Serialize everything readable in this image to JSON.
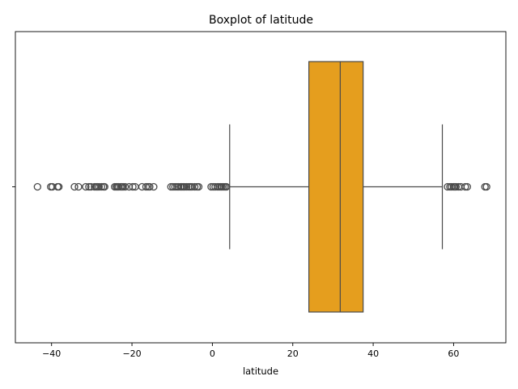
{
  "chart_data": {
    "type": "boxplot",
    "title": "Boxplot of latitude",
    "xlabel": "latitude",
    "ylabel": "",
    "xlim": [
      -49.0,
      73.0
    ],
    "x_ticks": [
      -40,
      -20,
      0,
      20,
      40,
      60
    ],
    "x_tick_labels": [
      "−40",
      "−20",
      "0",
      "20",
      "40",
      "60"
    ],
    "y_tick_labels": [
      ""
    ],
    "box": {
      "q1": 24.0,
      "median": 31.8,
      "q3": 37.5,
      "whisker_low": 4.3,
      "whisker_high": 57.2
    },
    "outliers": [
      -43.5,
      -40.2,
      -39.8,
      -38.5,
      -38.2,
      -34.3,
      -33.3,
      -31.5,
      -30.7,
      -30.2,
      -29.3,
      -28.9,
      -28.6,
      -28.2,
      -27.6,
      -27.1,
      -26.8,
      -24.3,
      -23.9,
      -23.6,
      -23.3,
      -22.8,
      -22.5,
      -22.2,
      -21.7,
      -20.7,
      -19.8,
      -19.2,
      -17.5,
      -16.5,
      -16.0,
      -15.6,
      -14.6,
      -10.3,
      -9.8,
      -9.3,
      -8.8,
      -8.4,
      -7.9,
      -7.6,
      -7.2,
      -6.9,
      -6.4,
      -5.9,
      -5.5,
      -5.1,
      -4.4,
      -3.8,
      -3.4,
      -0.3,
      0.2,
      0.7,
      1.3,
      1.7,
      2.1,
      2.4,
      2.8,
      3.2,
      3.5,
      58.5,
      59.1,
      59.5,
      60.0,
      60.3,
      60.6,
      61.2,
      61.8,
      62.9,
      63.4,
      67.8,
      68.2
    ],
    "colors": {
      "box_fill": "#e59e1e",
      "line": "#4a4a4a"
    }
  }
}
